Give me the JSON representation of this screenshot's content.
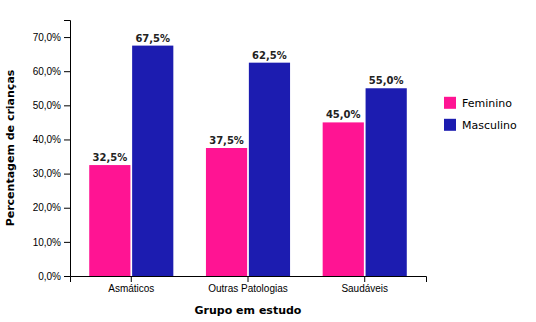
{
  "chart_data": {
    "type": "bar",
    "categories": [
      "Asmáticos",
      "Outras Patologias",
      "Saudáveis"
    ],
    "series": [
      {
        "name": "Feminino",
        "color": "#FF1493",
        "values": [
          32.5,
          37.5,
          45.0
        ],
        "value_labels": [
          "32,5%",
          "37,5%",
          "45,0%"
        ]
      },
      {
        "name": "Masculino",
        "color": "#1C1CB0",
        "values": [
          67.5,
          62.5,
          55.0
        ],
        "value_labels": [
          "67,5%",
          "62,5%",
          "55,0%"
        ]
      }
    ],
    "xlabel": "Grupo em estudo",
    "ylabel": "Percentagem de crianças",
    "ylim": [
      0,
      75
    ],
    "yticks": [
      {
        "value": 0,
        "label": "0,0%"
      },
      {
        "value": 10,
        "label": "10,0%"
      },
      {
        "value": 20,
        "label": "20,0%"
      },
      {
        "value": 30,
        "label": "30,0%"
      },
      {
        "value": 40,
        "label": "40,0%"
      },
      {
        "value": 50,
        "label": "50,0%"
      },
      {
        "value": 60,
        "label": "60,0%"
      },
      {
        "value": 70,
        "label": "70,0%"
      }
    ],
    "grid": false,
    "data_labels": true,
    "legend": "right"
  }
}
